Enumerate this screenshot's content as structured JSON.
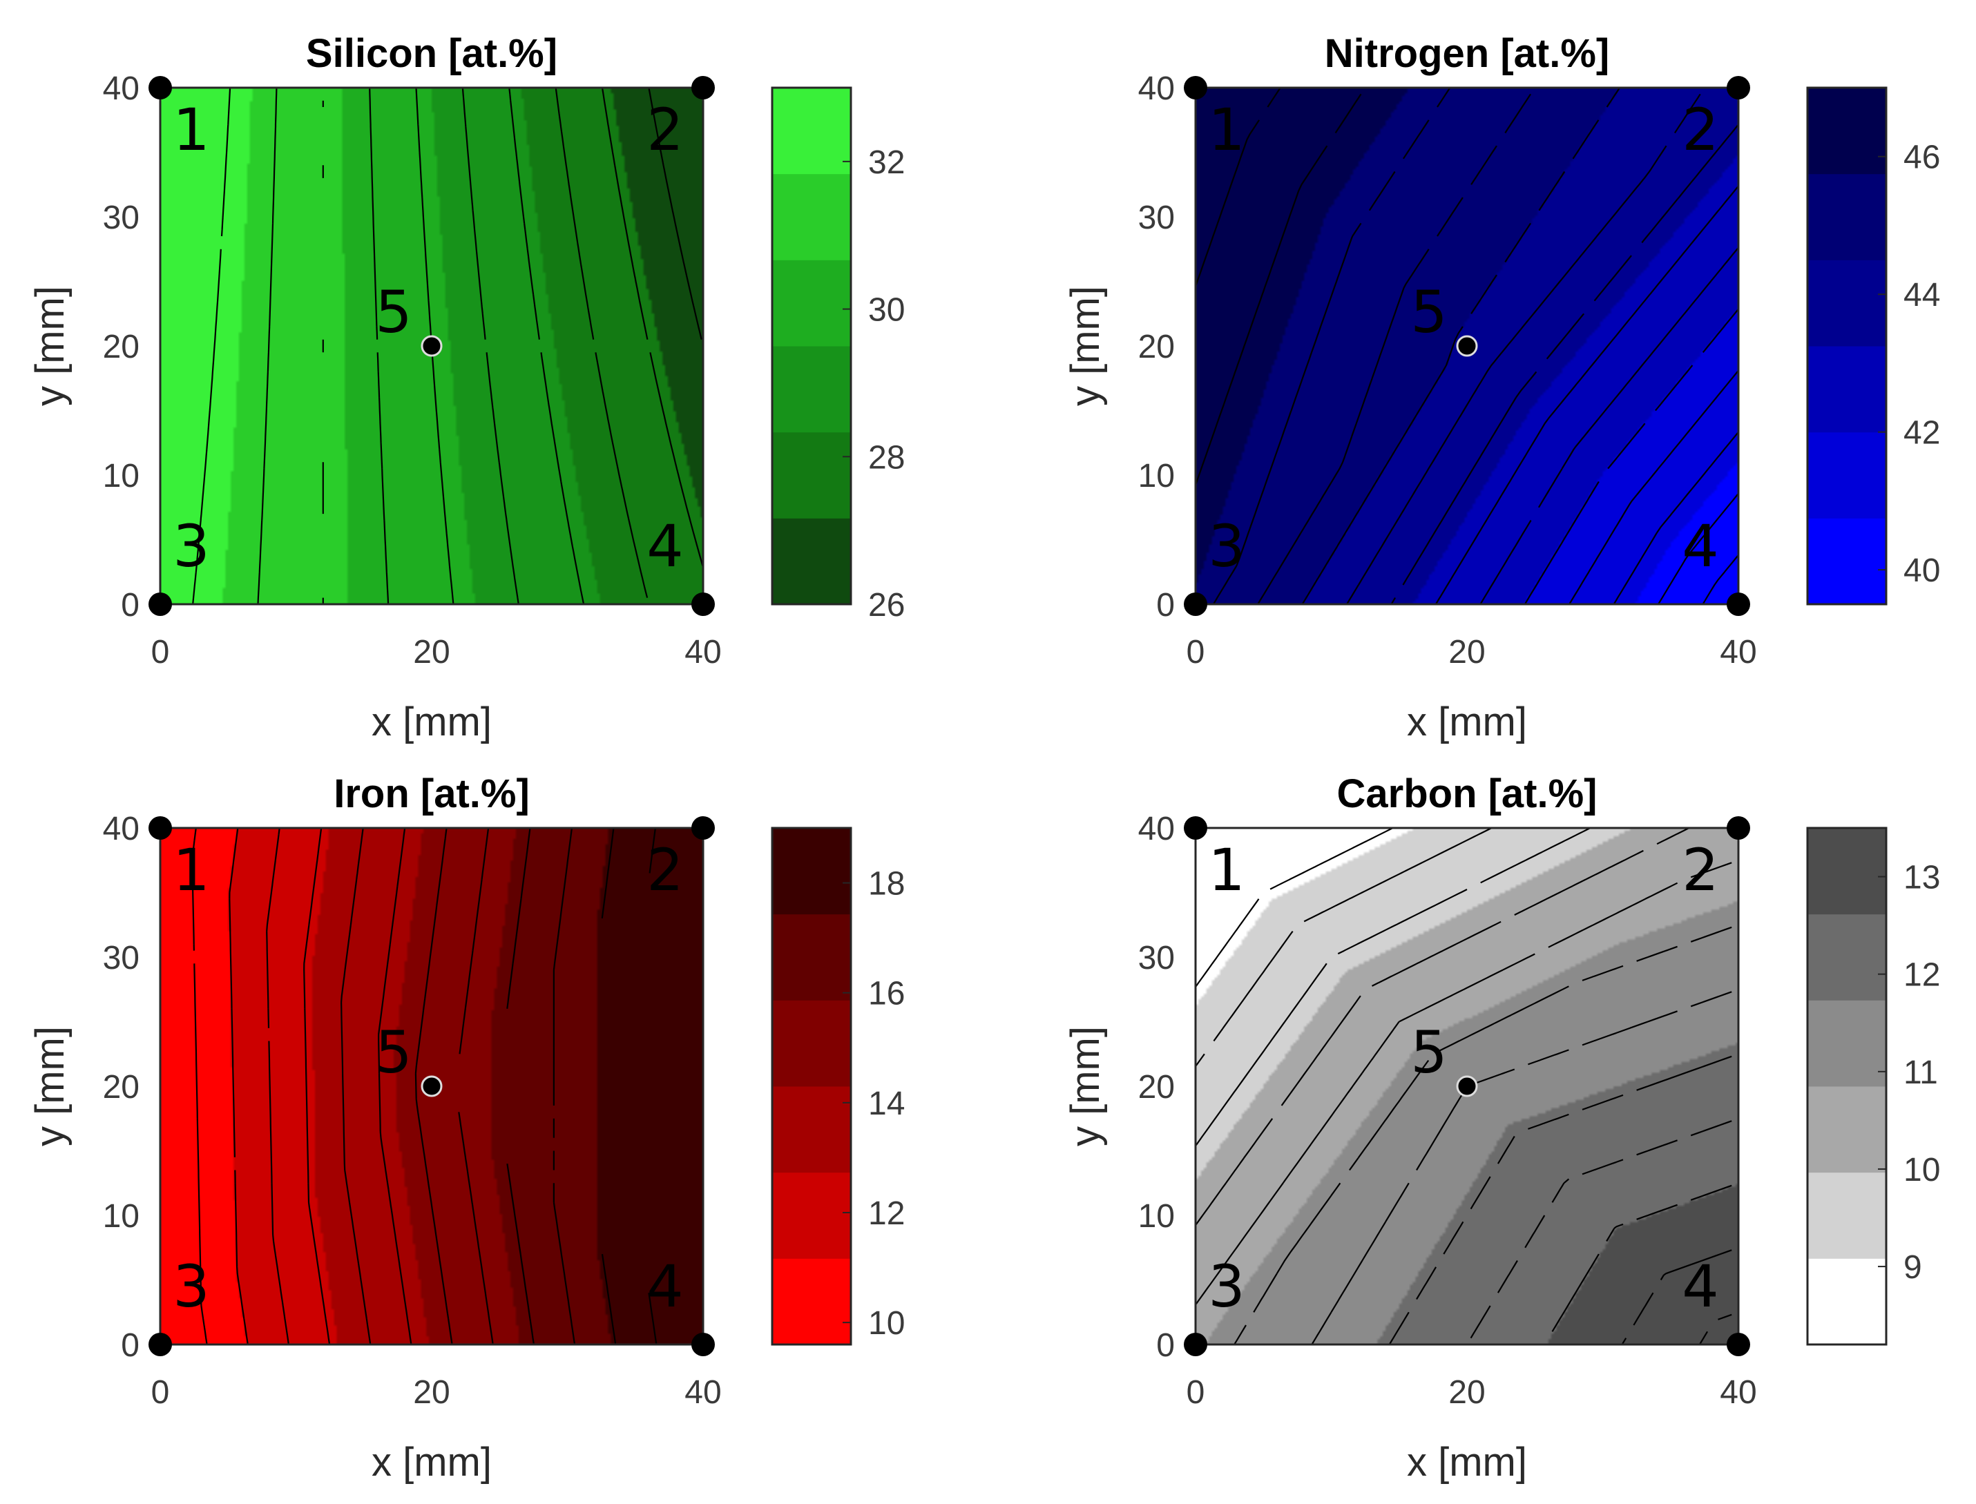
{
  "chart_data": [
    {
      "type": "heatmap",
      "subtype": "filled-contour",
      "title": "Silicon [at.%]",
      "xlabel": "x [mm]",
      "ylabel": "y [mm]",
      "xlim": [
        0,
        40
      ],
      "ylim": [
        0,
        40
      ],
      "xticks": [
        "0",
        "20",
        "40"
      ],
      "yticks": [
        "0",
        "10",
        "20",
        "30",
        "40"
      ],
      "colorbar": {
        "range": [
          26,
          33
        ],
        "ticks": [
          "26",
          "28",
          "30",
          "32"
        ],
        "levels": 6,
        "colors": [
          "#0f4a0f",
          "#137a13",
          "#17931a",
          "#1ead20",
          "#2acd2a",
          "#39f039"
        ]
      },
      "measurement_points": [
        {
          "label": "1",
          "x": 0,
          "y": 40,
          "value": 33
        },
        {
          "label": "2",
          "x": 40,
          "y": 40,
          "value": 26
        },
        {
          "label": "3",
          "x": 0,
          "y": 0,
          "value": 32.4
        },
        {
          "label": "4",
          "x": 40,
          "y": 0,
          "value": 27.4
        },
        {
          "label": "5",
          "x": 20,
          "y": 20,
          "value": 29.7
        }
      ],
      "contour_levels": [
        32.1,
        31.5,
        30.9,
        30.3,
        29.7,
        29.1,
        28.5,
        27.9,
        27.3,
        26.7
      ],
      "interp": "bilinear"
    },
    {
      "type": "heatmap",
      "subtype": "filled-contour",
      "title": "Nitrogen [at.%]",
      "xlabel": "x [mm]",
      "ylabel": "y [mm]",
      "xlim": [
        0,
        40
      ],
      "ylim": [
        0,
        40
      ],
      "xticks": [
        "0",
        "20",
        "40"
      ],
      "yticks": [
        "0",
        "10",
        "20",
        "30",
        "40"
      ],
      "colorbar": {
        "range": [
          39.5,
          47
        ],
        "ticks": [
          "40",
          "42",
          "44",
          "46"
        ],
        "levels": 6,
        "colors": [
          "#0000ff",
          "#0000d9",
          "#0000b5",
          "#00008f",
          "#000074",
          "#00004e"
        ]
      },
      "measurement_points": [
        {
          "label": "1",
          "x": 0,
          "y": 40,
          "value": 47
        },
        {
          "label": "2",
          "x": 40,
          "y": 40,
          "value": 43.8
        },
        {
          "label": "3",
          "x": 0,
          "y": 0,
          "value": 45.7
        },
        {
          "label": "4",
          "x": 40,
          "y": 0,
          "value": 39.6
        },
        {
          "label": "5",
          "x": 20,
          "y": 20,
          "value": 44.4
        }
      ],
      "contour_levels": [
        46.5,
        46,
        45.5,
        45,
        44.5,
        44,
        43.5,
        43,
        42.5,
        42,
        41.5,
        41,
        40.5,
        40
      ],
      "interp": "triangular"
    },
    {
      "type": "heatmap",
      "subtype": "filled-contour",
      "title": "Iron [at.%]",
      "xlabel": "x [mm]",
      "ylabel": "y [mm]",
      "xlim": [
        0,
        40
      ],
      "ylim": [
        0,
        40
      ],
      "xticks": [
        "0",
        "20",
        "40"
      ],
      "yticks": [
        "0",
        "10",
        "20",
        "30",
        "40"
      ],
      "colorbar": {
        "range": [
          9.6,
          19
        ],
        "ticks": [
          "10",
          "12",
          "14",
          "16",
          "18"
        ],
        "levels": 6,
        "colors": [
          "#ff0000",
          "#cc0000",
          "#a30000",
          "#800000",
          "#600000",
          "#3a0000"
        ]
      },
      "measurement_points": [
        {
          "label": "1",
          "x": 0,
          "y": 40,
          "value": 9.9
        },
        {
          "label": "2",
          "x": 40,
          "y": 40,
          "value": 19
        },
        {
          "label": "3",
          "x": 0,
          "y": 0,
          "value": 9.7
        },
        {
          "label": "4",
          "x": 40,
          "y": 0,
          "value": 19
        },
        {
          "label": "5",
          "x": 20,
          "y": 20,
          "value": 15
        }
      ],
      "contour_levels": [
        10.5,
        11.2,
        11.9,
        12.6,
        13.3,
        14,
        14.7,
        15.4,
        16.1,
        16.8,
        17.5,
        18.2
      ],
      "interp": "triangular"
    },
    {
      "type": "heatmap",
      "subtype": "filled-contour",
      "title": "Carbon [at.%]",
      "xlabel": "x [mm]",
      "ylabel": "y [mm]",
      "xlim": [
        0,
        40
      ],
      "ylim": [
        0,
        40
      ],
      "xticks": [
        "0",
        "20",
        "40"
      ],
      "yticks": [
        "0",
        "10",
        "20",
        "30",
        "40"
      ],
      "colorbar": {
        "range": [
          8.2,
          13.5
        ],
        "ticks": [
          "9",
          "10",
          "11",
          "12",
          "13"
        ],
        "levels": 6,
        "colors": [
          "#ffffff",
          "#d2d2d2",
          "#a8a8a8",
          "#8b8b8b",
          "#6c6c6c",
          "#4d4d4d"
        ]
      },
      "measurement_points": [
        {
          "label": "1",
          "x": 0,
          "y": 40,
          "value": 8.2
        },
        {
          "label": "2",
          "x": 40,
          "y": 40,
          "value": 10.4
        },
        {
          "label": "3",
          "x": 0,
          "y": 0,
          "value": 10.8
        },
        {
          "label": "4",
          "x": 40,
          "y": 0,
          "value": 13.6
        },
        {
          "label": "5",
          "x": 20,
          "y": 20,
          "value": 11.4
        }
      ],
      "contour_levels": [
        9,
        9.4,
        9.8,
        10.2,
        10.6,
        11,
        11.4,
        11.8,
        12.2,
        12.6,
        13,
        13.4
      ],
      "interp": "triangular"
    }
  ]
}
